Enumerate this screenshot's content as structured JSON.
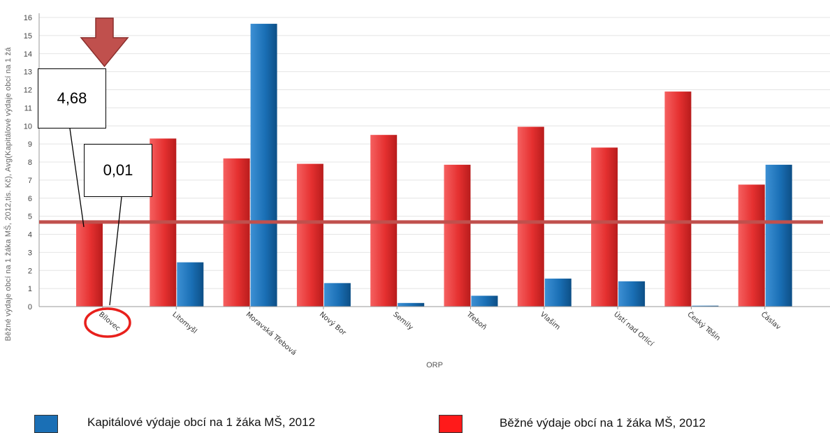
{
  "chart_data": {
    "type": "bar",
    "xlabel": "ORP",
    "ylabel": "Běžné výdaje obcí na 1 žáka MŠ, 2012,tis. Kč), Avg(Kapitálové výdaje obcí na 1 žá",
    "ylim": [
      0,
      16
    ],
    "yticks": [
      "0",
      "1",
      "2",
      "3",
      "4",
      "5",
      "6",
      "7",
      "8",
      "9",
      "10",
      "11",
      "12",
      "13",
      "14",
      "15",
      "16"
    ],
    "grid": true,
    "categories": [
      "Bílovec",
      "Litomyšl",
      "Moravská Třebová",
      "Nový Bor",
      "Semily",
      "Třeboň",
      "Vlašim",
      "Ústí nad Orlicí",
      "Český Těšín",
      "Čáslav"
    ],
    "series": [
      {
        "name": "Běžné výdaje obcí na 1 žáka MŠ, 2012",
        "color": "#e52f2f",
        "values": [
          4.68,
          9.3,
          8.2,
          7.9,
          9.5,
          7.85,
          9.95,
          8.8,
          11.9,
          6.75
        ]
      },
      {
        "name": "Kapitálové výdaje obcí na 1 žáka MŠ, 2012",
        "color": "#1a6fb5",
        "values": [
          0.01,
          2.45,
          15.65,
          1.3,
          0.2,
          0.6,
          1.55,
          1.4,
          0.05,
          7.85
        ]
      }
    ],
    "reference_line": {
      "value": 4.68,
      "color": "#c0504d"
    },
    "annotations": {
      "red_value": "4,68",
      "blue_value": "0,01",
      "highlighted_category": "Bílovec"
    }
  },
  "legend": {
    "blue_label": "Kapitálové výdaje obcí na 1 žáka MŠ, 2012",
    "red_label": "Běžné výdaje obcí na 1 žáka MŠ, 2012",
    "blue_color": "#1a6fb5",
    "red_color": "#ff1a1a"
  }
}
